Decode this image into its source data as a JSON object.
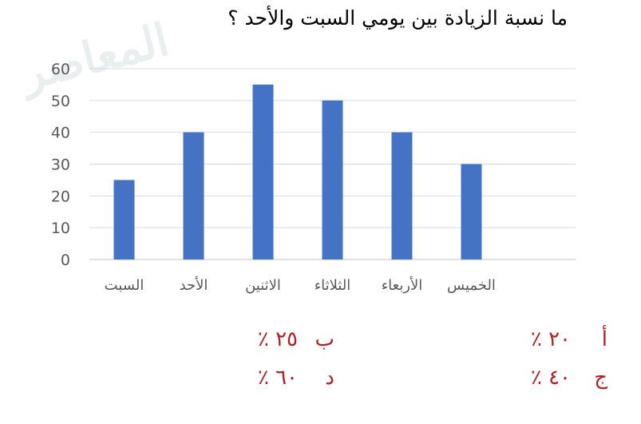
{
  "question": "ما نسبة الزيادة بين يومي السبت والأحد ؟",
  "watermark": "المعاصر",
  "colors": {
    "bar": "#4472c4",
    "grid": "#d9d9d9",
    "axis_text": "#595959",
    "answer": "#b01f24"
  },
  "chart_data": {
    "type": "bar",
    "title": "",
    "xlabel": "",
    "ylabel": "",
    "categories": [
      "السبت",
      "الأحد",
      "الاثنين",
      "الثلاثاء",
      "الأربعاء",
      "الخميس"
    ],
    "values": [
      25,
      40,
      55,
      50,
      40,
      30
    ],
    "ylim": [
      0,
      60
    ],
    "yticks": [
      0,
      10,
      20,
      30,
      40,
      50,
      60
    ],
    "grid": true,
    "legend": "none"
  },
  "answers": [
    {
      "letter": "أ",
      "value": "٢٠ ٪"
    },
    {
      "letter": "ب",
      "value": "٢٥ ٪"
    },
    {
      "letter": "ج",
      "value": "٤٠ ٪"
    },
    {
      "letter": "د",
      "value": "٦٠ ٪"
    }
  ]
}
